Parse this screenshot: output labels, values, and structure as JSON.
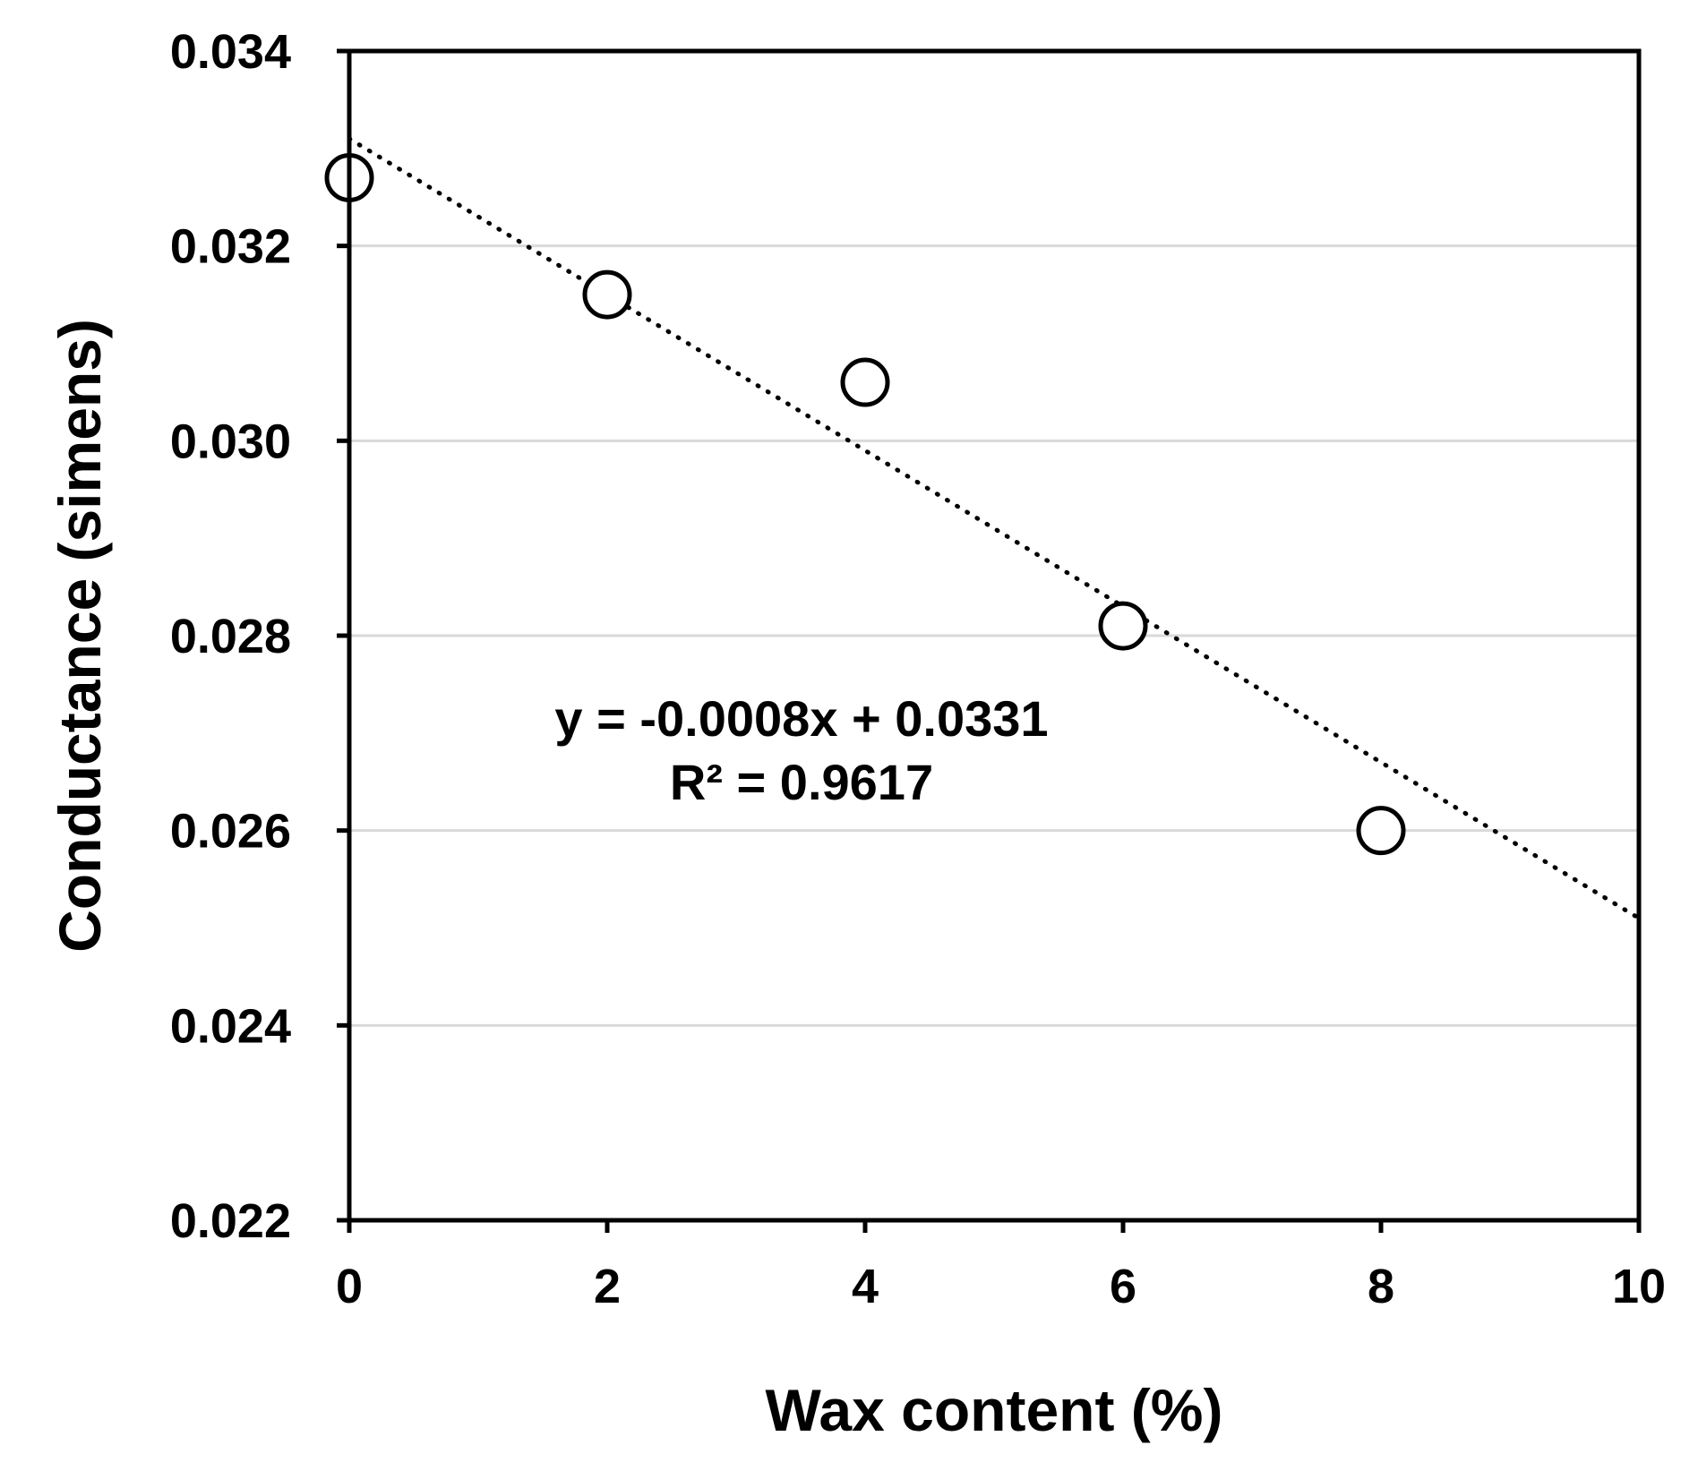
{
  "chart_data": {
    "type": "scatter",
    "xlabel": "Wax content (%)",
    "ylabel": "Conductance (simens)",
    "xlim": [
      0,
      10
    ],
    "ylim": [
      0.022,
      0.034
    ],
    "xticks": [
      0,
      2,
      4,
      6,
      8,
      10
    ],
    "xtick_labels": [
      "0",
      "2",
      "4",
      "6",
      "8",
      "10"
    ],
    "yticks": [
      0.022,
      0.024,
      0.026,
      0.028,
      0.03,
      0.032,
      0.034
    ],
    "ytick_labels": [
      "0.022",
      "0.024",
      "0.026",
      "0.028",
      "0.030",
      "0.032",
      "0.034"
    ],
    "grid": "horizontal",
    "series": [
      {
        "marker": "open-circle",
        "x": [
          0,
          2,
          4,
          6,
          8
        ],
        "y": [
          0.0327,
          0.0315,
          0.0306,
          0.0281,
          0.026
        ]
      }
    ],
    "trendline": {
      "style": "dotted",
      "slope": -0.0008,
      "intercept": 0.0331,
      "x_range": [
        0,
        10
      ]
    },
    "annotations": [
      "y = -0.0008x + 0.0331",
      "R² = 0.9617"
    ]
  }
}
